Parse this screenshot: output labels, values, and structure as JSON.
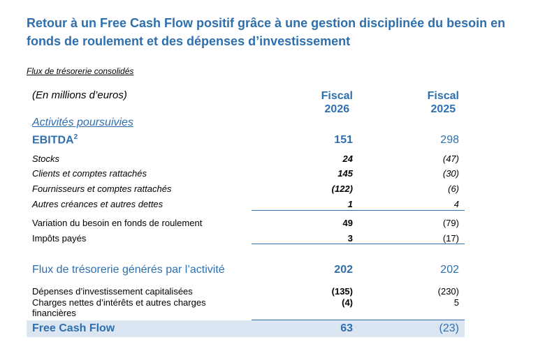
{
  "title": "Retour à un Free Cash Flow positif grâce à une gestion disciplinée du besoin en fonds de roulement et des dépenses d’investissement",
  "subtitle": "Flux de trésorerie consolidés",
  "unit_label": "(En millions d’euros)",
  "columns": [
    {
      "line1": "Fiscal",
      "line2": "2026"
    },
    {
      "line1": "Fiscal",
      "line2": "2025"
    }
  ],
  "section_label": "Activités poursuivies",
  "ebitda": {
    "label": "EBITDA",
    "sup": "2",
    "v2026": "151",
    "v2025": "298"
  },
  "wc_items": [
    {
      "label": "Stocks",
      "v2026": "24",
      "v2025": "(47)"
    },
    {
      "label": "Clients et comptes rattachés",
      "v2026": "145",
      "v2025": "(30)"
    },
    {
      "label": "Fournisseurs et comptes rattachés",
      "v2026": "(122)",
      "v2025": "(6)"
    },
    {
      "label": "Autres créances et autres dettes",
      "v2026": "1",
      "v2025": "4"
    }
  ],
  "variation": {
    "label": "Variation du besoin en fonds de roulement",
    "v2026": "49",
    "v2025": "(79)"
  },
  "impots": {
    "label": "Impôts payés",
    "v2026": "3",
    "v2025": "(17)"
  },
  "flux_activite": {
    "label": "Flux de trésorerie générés par l’activité",
    "v2026": "202",
    "v2025": "202"
  },
  "capex": {
    "label": "Dépenses d’investissement capitalisées",
    "v2026": "(135)",
    "v2025": "(230)"
  },
  "charges": {
    "label_line1": "Charges nettes d’intérêts et autres charges",
    "label_line2": "financières",
    "v2026": "(4)",
    "v2025": "5"
  },
  "fcf": {
    "label": "Free Cash Flow",
    "v2026": "63",
    "v2025": "(23)"
  }
}
